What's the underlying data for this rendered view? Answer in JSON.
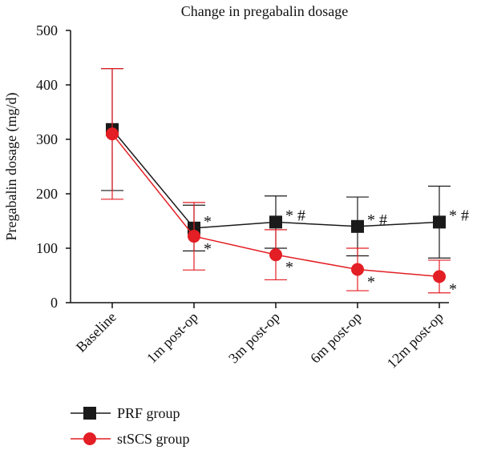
{
  "chart_data": {
    "type": "line",
    "title": "Change in pregabalin dosage",
    "xlabel": "",
    "ylabel": "Pregabalin dosage (mg/d)",
    "ylim": [
      0,
      500
    ],
    "yticks": [
      0,
      100,
      200,
      300,
      400,
      500
    ],
    "categories": [
      "Baseline",
      "1m post-op",
      "3m post-op",
      "6m post-op",
      "12m post-op"
    ],
    "grid": false,
    "legend_position": "bottom-left",
    "series": [
      {
        "name": "PRF group",
        "color": "#1a1a1a",
        "marker": "square",
        "values": [
          318,
          137,
          148,
          140,
          148
        ],
        "error": [
          112,
          42,
          48,
          54,
          66
        ],
        "annotations": [
          "",
          "*",
          "* #",
          "* #",
          "* #"
        ]
      },
      {
        "name": "stSCS group",
        "color": "#e31e24",
        "marker": "circle",
        "values": [
          310,
          122,
          88,
          61,
          48
        ],
        "error": [
          120,
          62,
          46,
          39,
          30
        ],
        "annotations": [
          "",
          "*",
          "*",
          "*",
          "*"
        ]
      }
    ]
  }
}
